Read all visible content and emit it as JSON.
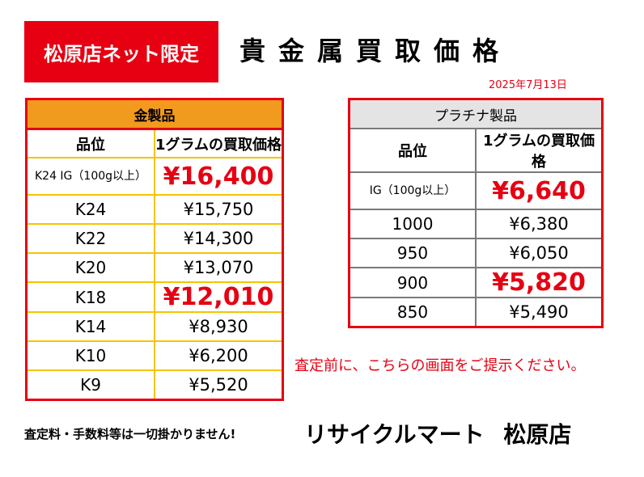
{
  "header": {
    "badge": "松原店ネット限定",
    "title": "貴金属買取価格",
    "date": "2025年7月13日"
  },
  "gold_table": {
    "caption": "金製品",
    "col_grade": "品位",
    "col_price": "1グラムの買取価格",
    "rows": [
      {
        "grade": "K24 IG（100g以上）",
        "price": "¥16,400",
        "highlight": true
      },
      {
        "grade": "K24",
        "price": "¥15,750",
        "highlight": false
      },
      {
        "grade": "K22",
        "price": "¥14,300",
        "highlight": false
      },
      {
        "grade": "K20",
        "price": "¥13,070",
        "highlight": false
      },
      {
        "grade": "K18",
        "price": "¥12,010",
        "highlight": true
      },
      {
        "grade": "K14",
        "price": "¥8,930",
        "highlight": false
      },
      {
        "grade": "K10",
        "price": "¥6,200",
        "highlight": false
      },
      {
        "grade": "K9",
        "price": "¥5,520",
        "highlight": false
      }
    ]
  },
  "platinum_table": {
    "caption": "プラチナ製品",
    "col_grade": "品位",
    "col_price": "1グラムの買取価格",
    "rows": [
      {
        "grade": "IG（100g以上）",
        "price": "¥6,640",
        "highlight": true
      },
      {
        "grade": "1000",
        "price": "¥6,380",
        "highlight": false
      },
      {
        "grade": "950",
        "price": "¥6,050",
        "highlight": false
      },
      {
        "grade": "900",
        "price": "¥5,820",
        "highlight": true
      },
      {
        "grade": "850",
        "price": "¥5,490",
        "highlight": false
      }
    ]
  },
  "notice": "査定前に、こちらの画面をご提示ください。",
  "footer": {
    "fee_note": "査定料・手数料等は一切掛かりません!",
    "store_name": "リサイクルマート 松原店"
  },
  "colors": {
    "accent_red": "#e60012",
    "gold_header": "#f29a1e",
    "gold_border": "#f5c400",
    "platinum_header": "#e4e4e4"
  }
}
